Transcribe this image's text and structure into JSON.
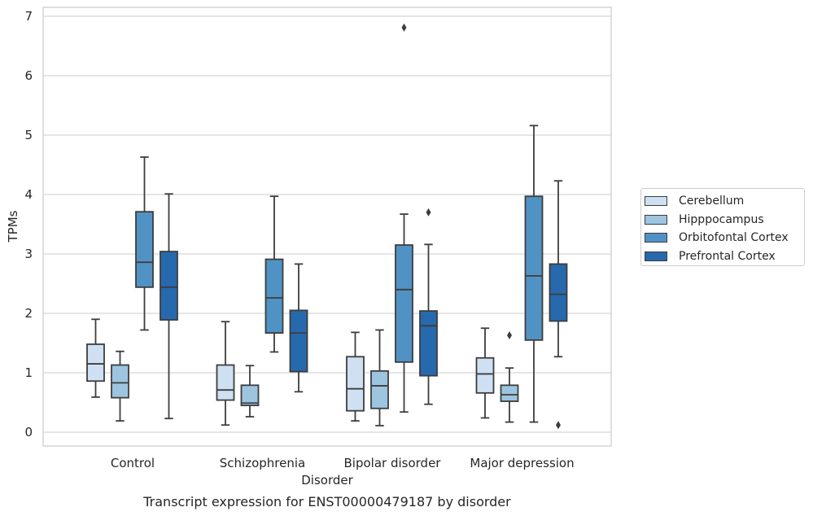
{
  "chart_data": {
    "type": "box",
    "title": "Transcript expression for ENST00000479187 by disorder",
    "xlabel": "Disorder",
    "ylabel": "TPMs",
    "ylim": [
      -0.2,
      7.15
    ],
    "yticks": [
      0,
      1,
      2,
      3,
      4,
      5,
      6,
      7
    ],
    "grid": true,
    "legend_position": "right",
    "categories": [
      "Control",
      "Schizophrenia",
      "Bipolar disorder",
      "Major depression"
    ],
    "series": [
      {
        "name": "Cerebellum",
        "color": "#cfe0f2",
        "boxes": [
          {
            "whislo": 0.59,
            "q1": 0.86,
            "med": 1.15,
            "q3": 1.48,
            "whishi": 1.9,
            "fliers": []
          },
          {
            "whislo": 0.12,
            "q1": 0.54,
            "med": 0.71,
            "q3": 1.13,
            "whishi": 1.86,
            "fliers": []
          },
          {
            "whislo": 0.19,
            "q1": 0.36,
            "med": 0.73,
            "q3": 1.27,
            "whishi": 1.68,
            "fliers": []
          },
          {
            "whislo": 0.24,
            "q1": 0.66,
            "med": 0.98,
            "q3": 1.25,
            "whishi": 1.75,
            "fliers": []
          }
        ]
      },
      {
        "name": "Hipppocampus",
        "color": "#9dc5e0",
        "boxes": [
          {
            "whislo": 0.19,
            "q1": 0.58,
            "med": 0.83,
            "q3": 1.13,
            "whishi": 1.36,
            "fliers": []
          },
          {
            "whislo": 0.26,
            "q1": 0.45,
            "med": 0.49,
            "q3": 0.79,
            "whishi": 1.12,
            "fliers": []
          },
          {
            "whislo": 0.11,
            "q1": 0.4,
            "med": 0.78,
            "q3": 1.03,
            "whishi": 1.72,
            "fliers": []
          },
          {
            "whislo": 0.17,
            "q1": 0.52,
            "med": 0.63,
            "q3": 0.79,
            "whishi": 1.08,
            "fliers": [
              1.63
            ]
          }
        ]
      },
      {
        "name": "Orbitofontal Cortex",
        "color": "#5192c4",
        "boxes": [
          {
            "whislo": 1.72,
            "q1": 2.44,
            "med": 2.86,
            "q3": 3.71,
            "whishi": 4.63,
            "fliers": []
          },
          {
            "whislo": 1.35,
            "q1": 1.67,
            "med": 2.26,
            "q3": 2.91,
            "whishi": 3.97,
            "fliers": []
          },
          {
            "whislo": 0.34,
            "q1": 1.18,
            "med": 2.4,
            "q3": 3.15,
            "whishi": 3.67,
            "fliers": [
              6.81
            ]
          },
          {
            "whislo": 0.17,
            "q1": 1.55,
            "med": 2.63,
            "q3": 3.97,
            "whishi": 5.16,
            "fliers": []
          }
        ]
      },
      {
        "name": "Prefrontal Cortex",
        "color": "#2769ad",
        "boxes": [
          {
            "whislo": 0.23,
            "q1": 1.89,
            "med": 2.44,
            "q3": 3.04,
            "whishi": 4.01,
            "fliers": []
          },
          {
            "whislo": 0.68,
            "q1": 1.02,
            "med": 1.67,
            "q3": 2.05,
            "whishi": 2.83,
            "fliers": []
          },
          {
            "whislo": 0.47,
            "q1": 0.95,
            "med": 1.79,
            "q3": 2.04,
            "whishi": 3.16,
            "fliers": [
              3.7
            ]
          },
          {
            "whislo": 1.27,
            "q1": 1.87,
            "med": 2.32,
            "q3": 2.83,
            "whishi": 4.23,
            "fliers": [
              0.12
            ]
          }
        ]
      }
    ]
  }
}
